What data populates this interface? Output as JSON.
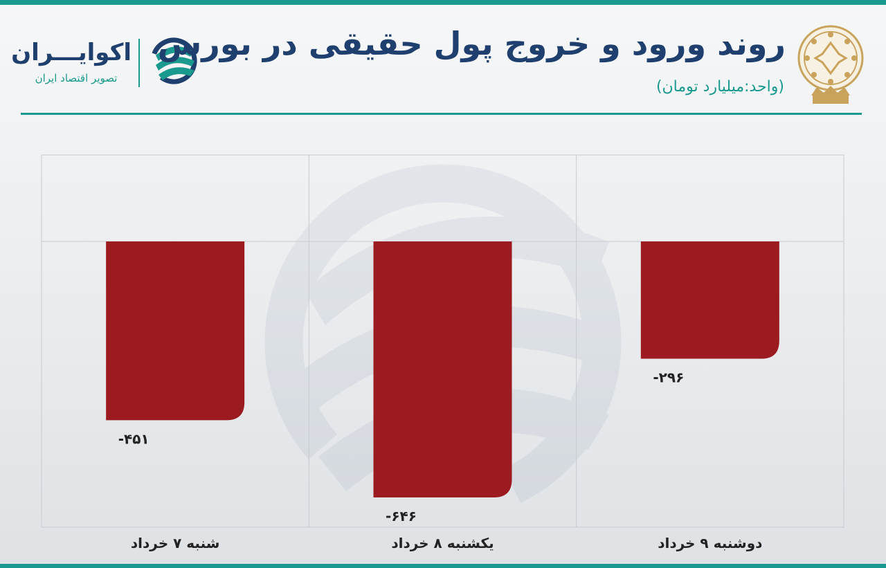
{
  "header": {
    "title": "روند ورود و خروج پول حقیقی در بورس",
    "subtitle": "(واحد:میلیارد تومان)"
  },
  "brand": {
    "name": "اکوایـــران",
    "tagline": "تصویر اقتصاد ایران",
    "color_primary": "#1f3f6e",
    "color_accent": "#1a9a8f"
  },
  "chart_data": {
    "type": "bar",
    "categories": [
      "دوشنبه ۹ خرداد",
      "یکشنبه ۸ خرداد",
      "شنبه ۷ خرداد"
    ],
    "values": [
      -296,
      -646,
      -451
    ],
    "data_labels": [
      "-۲۹۶",
      "-۶۴۶",
      "-۴۵۱"
    ],
    "title": "روند ورود و خروج پول حقیقی در بورس",
    "unit": "(واحد:میلیارد تومان)",
    "bar_color": "#9c1b21",
    "grid": true,
    "legend": "none"
  }
}
